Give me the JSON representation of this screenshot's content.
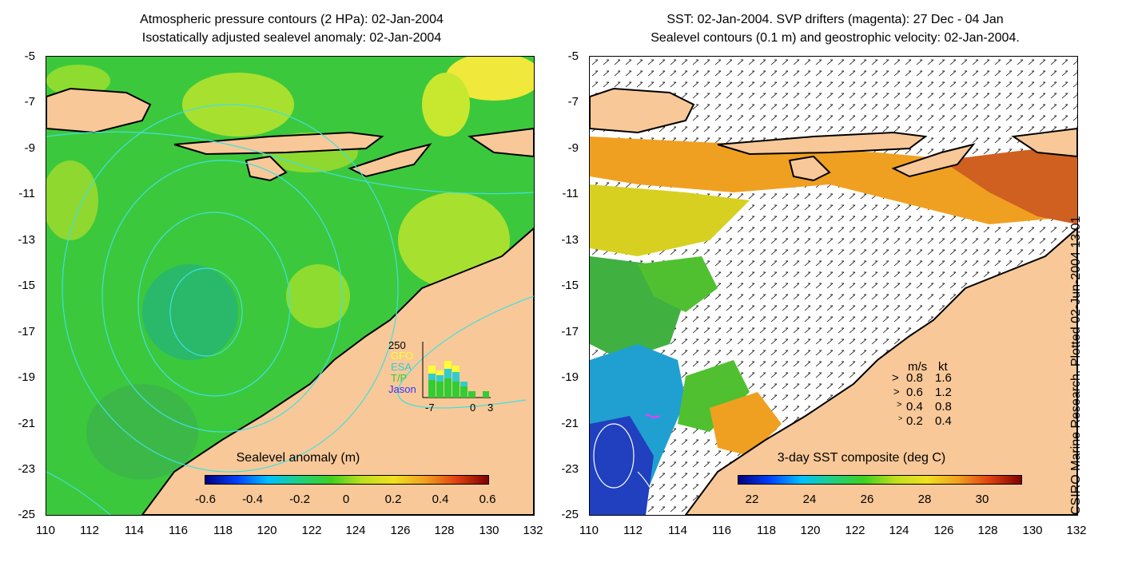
{
  "left_panel": {
    "title_line1": "Atmospheric pressure contours (2 HPa): 02-Jan-2004",
    "title_line2": "Isostatically adjusted sealevel anomaly: 02-Jan-2004",
    "colorbar_label": "Sealevel anomaly (m)",
    "colorbar_ticks": [
      "-0.6",
      "-0.4",
      "-0.2",
      "0",
      "0.2",
      "0.4",
      "0.6"
    ],
    "inset": {
      "ymax_label": "250",
      "legend": [
        {
          "label": "GFO",
          "color": "#ffff33"
        },
        {
          "label": "ESA",
          "color": "#33cccc"
        },
        {
          "label": "T/P",
          "color": "#33cc33"
        },
        {
          "label": "Jason",
          "color": "#3333ff"
        }
      ],
      "x_labels": [
        "-7",
        "0",
        "3"
      ]
    }
  },
  "right_panel": {
    "title_line1": "SST: 02-Jan-2004. SVP drifters (magenta): 27 Dec - 04 Jan",
    "title_line2": "Sealevel contours (0.1 m) and geostrophic velocity: 02-Jan-2004.",
    "colorbar_label": "3-day SST composite (deg C)",
    "colorbar_ticks": [
      "22",
      "24",
      "26",
      "28",
      "30"
    ],
    "vector_legend": {
      "header_ms": "m/s",
      "header_kt": "kt",
      "rows": [
        {
          "ms": "0.8",
          "kt": "1.6"
        },
        {
          "ms": "0.6",
          "kt": "1.2"
        },
        {
          "ms": "0.4",
          "kt": "0.8"
        },
        {
          "ms": "0.2",
          "kt": "0.4"
        }
      ]
    }
  },
  "axes": {
    "y_ticks": [
      "-5",
      "-7",
      "-9",
      "-11",
      "-13",
      "-15",
      "-17",
      "-19",
      "-21",
      "-23",
      "-25"
    ],
    "x_ticks": [
      "110",
      "112",
      "114",
      "116",
      "118",
      "120",
      "122",
      "124",
      "126",
      "128",
      "130",
      "132"
    ]
  },
  "credit": "CSIRO Marine Research. Plotted 02-Jun-2004 13:01",
  "colors": {
    "land": "#f8c898",
    "ocean_green": "#3cc83c",
    "contour": "#40e0e0",
    "sst_warm": "#f0a020"
  }
}
